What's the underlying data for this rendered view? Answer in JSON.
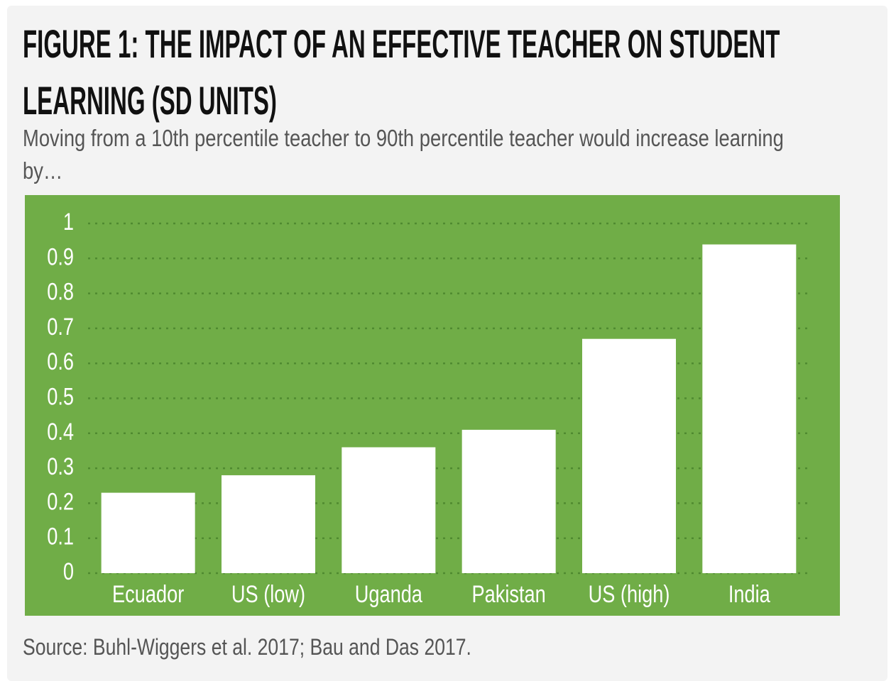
{
  "chart_data": {
    "type": "bar",
    "title": "FIGURE 1: THE IMPACT OF AN EFFECTIVE TEACHER ON STUDENT LEARNING (SD UNITS)",
    "subtitle": "Moving from a 10th percentile teacher to 90th percentile teacher would increase learning by…",
    "source": "Source: Buhl-Wiggers et al. 2017; Bau and Das 2017.",
    "categories": [
      "Ecuador",
      "US (low)",
      "Uganda",
      "Pakistan",
      "US (high)",
      "India"
    ],
    "values": [
      0.23,
      0.28,
      0.36,
      0.41,
      0.67,
      0.94
    ],
    "color": "#ffffff",
    "background": "#70ad47",
    "ylim": [
      0,
      1
    ],
    "yticks": [
      0,
      0.1,
      0.2,
      0.3,
      0.4,
      0.5,
      0.6,
      0.7,
      0.8,
      0.9,
      1
    ],
    "grid": true
  }
}
